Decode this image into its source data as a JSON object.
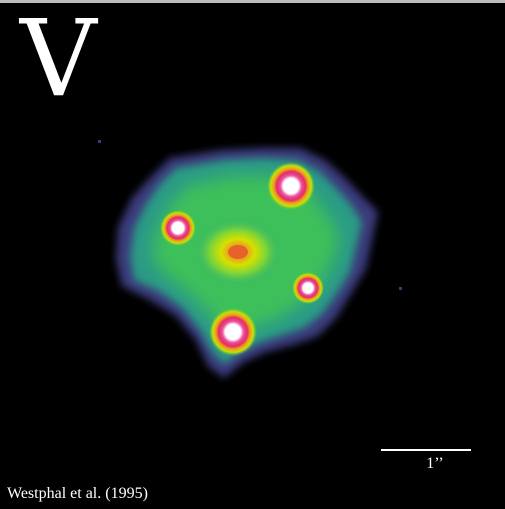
{
  "band_label": "V",
  "scale_bar_label": "1’’",
  "credit": "Westphal et al. (1995)",
  "colors": {
    "background": "#000000",
    "halo_outer": "#3a3a78",
    "halo_mid": "#1fa87a",
    "halo_inner": "#5fd23a",
    "core": "#d9e000",
    "nucleus": "#e8602a",
    "image_ring": "#e0306a",
    "image_center": "#ffffff"
  },
  "lensed_images": [
    {
      "id": "A"
    },
    {
      "id": "B"
    },
    {
      "id": "C"
    },
    {
      "id": "D"
    }
  ]
}
